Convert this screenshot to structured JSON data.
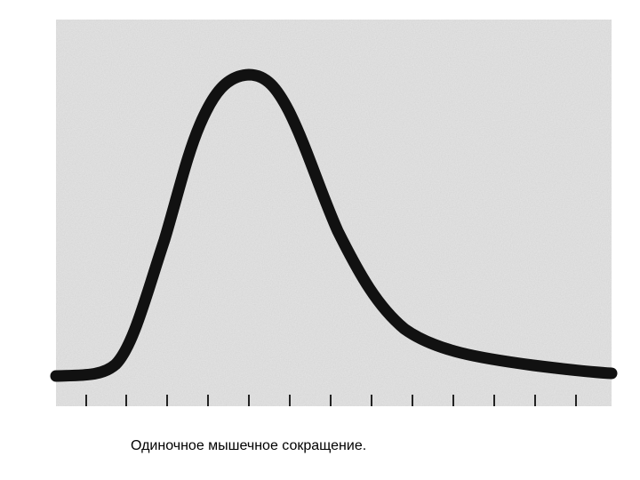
{
  "caption": "Одиночное мышечное сокращение."
}
